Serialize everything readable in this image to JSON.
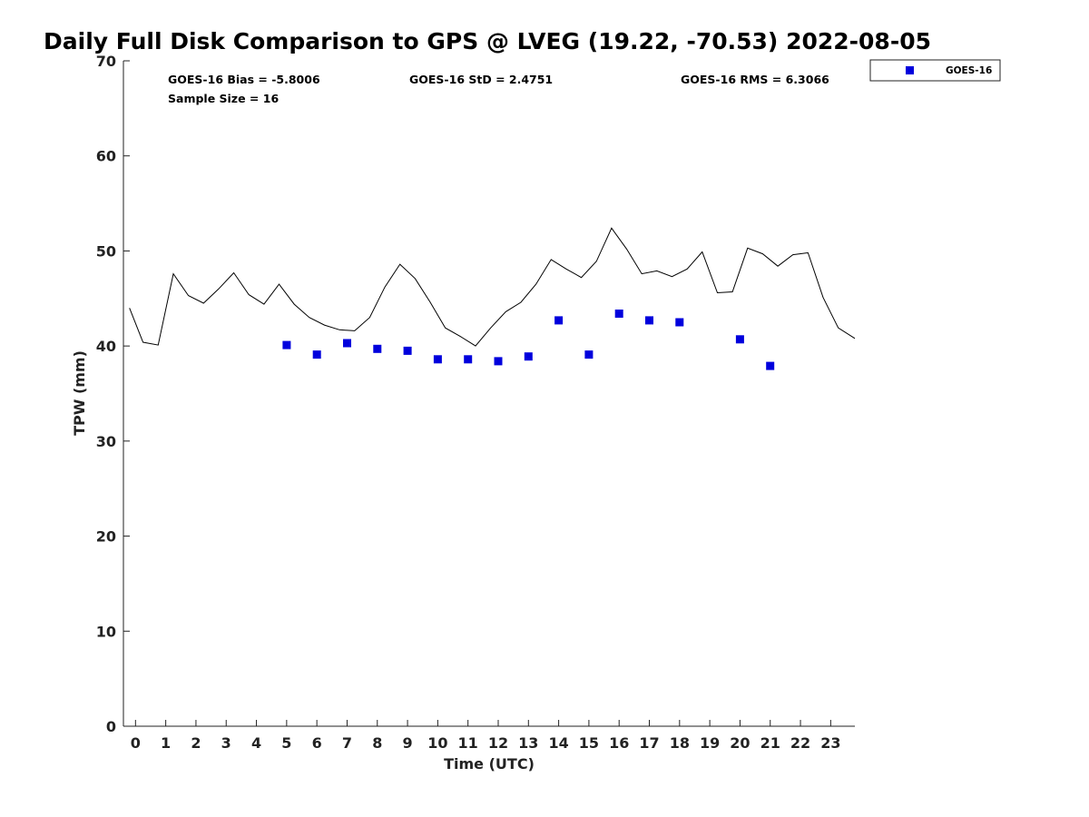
{
  "chart_data": {
    "type": "scatter",
    "title": "Daily Full Disk Comparison to GPS @ LVEG (19.22, -70.53) 2022-08-05",
    "xlabel": "Time (UTC)",
    "ylabel": "TPW (mm)",
    "xlim": [
      -0.4,
      23.8
    ],
    "ylim": [
      0,
      70
    ],
    "x_ticks": [
      "0",
      "1",
      "2",
      "3",
      "4",
      "5",
      "6",
      "7",
      "8",
      "9",
      "10",
      "11",
      "12",
      "13",
      "14",
      "15",
      "16",
      "17",
      "18",
      "19",
      "20",
      "21",
      "22",
      "23"
    ],
    "y_ticks": [
      "0",
      "10",
      "20",
      "30",
      "40",
      "50",
      "60",
      "70"
    ],
    "grid": false,
    "legend_position": "top-right",
    "stats": {
      "bias": "GOES-16 Bias = -5.8006",
      "std": "GOES-16 StD = 2.4751",
      "rms": "GOES-16 RMS = 6.3066",
      "sample": "Sample Size = 16"
    },
    "gps_line": {
      "color": "#000000",
      "x": [
        -0.2,
        0.25,
        0.75,
        1.25,
        1.75,
        2.25,
        2.75,
        3.25,
        3.75,
        4.25,
        4.75,
        5.25,
        5.75,
        6.25,
        6.75,
        7.25,
        7.75,
        8.25,
        8.75,
        9.25,
        9.75,
        10.25,
        10.75,
        11.25,
        11.75,
        12.25,
        12.75,
        13.25,
        13.75,
        14.25,
        14.75,
        15.25,
        15.75,
        16.25,
        16.75,
        17.25,
        17.75,
        18.25,
        18.75,
        19.25,
        19.75,
        20.25,
        20.75,
        21.25,
        21.75,
        22.25,
        22.75,
        23.25,
        23.8
      ],
      "y": [
        44.0,
        40.4,
        40.1,
        47.6,
        45.3,
        44.5,
        46.0,
        47.7,
        45.4,
        44.4,
        46.5,
        44.4,
        43.0,
        42.2,
        41.7,
        41.6,
        43.0,
        46.2,
        48.6,
        47.1,
        44.6,
        41.9,
        41.0,
        40.0,
        41.9,
        43.6,
        44.6,
        46.5,
        49.1,
        48.1,
        47.2,
        48.9,
        52.4,
        50.2,
        47.6,
        47.9,
        47.3,
        48.1,
        49.9,
        45.6,
        45.7,
        50.3,
        49.7,
        48.4,
        49.6,
        49.8,
        45.1,
        41.9,
        40.8
      ]
    },
    "series": [
      {
        "name": "GOES-16",
        "color": "#0000dd",
        "x": [
          5,
          6,
          7,
          8,
          9,
          10,
          11,
          12,
          13,
          14,
          15,
          16,
          17,
          18,
          20,
          21
        ],
        "y": [
          40.1,
          39.1,
          40.3,
          39.7,
          39.5,
          38.6,
          38.6,
          38.4,
          38.9,
          42.7,
          39.1,
          43.4,
          42.7,
          42.5,
          40.7,
          37.9
        ]
      }
    ]
  }
}
